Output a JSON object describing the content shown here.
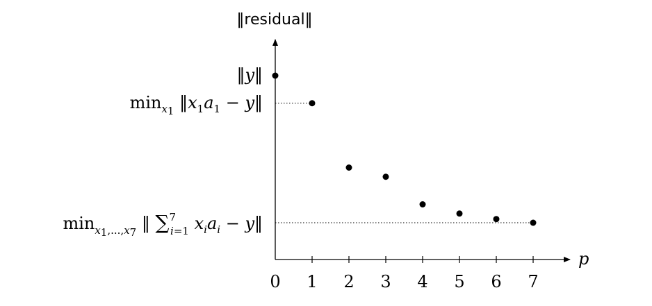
{
  "chart_data": {
    "type": "scatter",
    "ylabel": "‖residual‖",
    "xlabel": "p",
    "x": [
      0,
      1,
      2,
      3,
      4,
      5,
      6,
      7
    ],
    "y": [
      1.0,
      0.85,
      0.5,
      0.45,
      0.3,
      0.25,
      0.22,
      0.2
    ],
    "xticks": [
      "0",
      "1",
      "2",
      "3",
      "4",
      "5",
      "6",
      "7"
    ],
    "xlim": [
      0,
      8
    ],
    "ylim": [
      0,
      1.3
    ],
    "grid": false,
    "annotations": [
      {
        "label": "‖y‖",
        "x": 0,
        "y": 1.0,
        "leader": false
      },
      {
        "label": "min_{x1} ‖x1a1 − y‖",
        "x": 1,
        "y": 0.85,
        "leader": true
      },
      {
        "label": "min_{x1,...,x7} ‖ Σ_{i=1}^{7} xiai − y‖",
        "x": 7,
        "y": 0.2,
        "leader": true
      }
    ]
  }
}
